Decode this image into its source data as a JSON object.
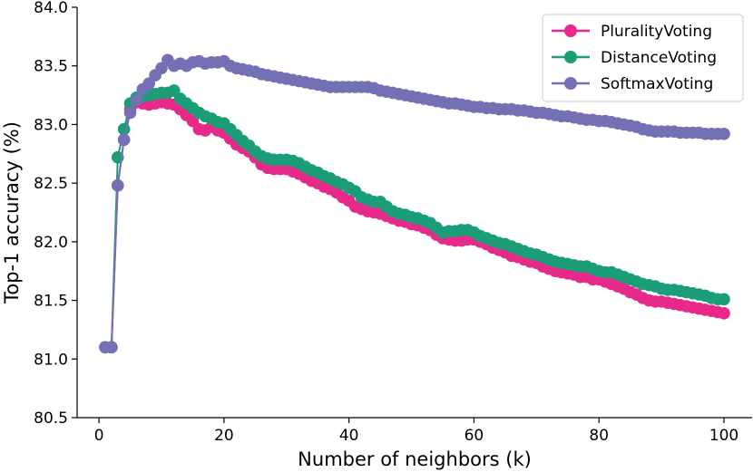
{
  "chart_data": {
    "type": "line",
    "title": "",
    "xlabel": "Number of neighbors (k)",
    "ylabel": "Top-1 accuracy (%)",
    "xlim": [
      -3.5,
      104.5
    ],
    "ylim": [
      80.5,
      84.0
    ],
    "xticks": [
      0,
      20,
      40,
      60,
      80,
      100
    ],
    "yticks": [
      80.5,
      81.0,
      81.5,
      82.0,
      82.5,
      83.0,
      83.5,
      84.0
    ],
    "xtick_labels": [
      "0",
      "20",
      "40",
      "60",
      "80",
      "100"
    ],
    "ytick_labels": [
      "80.5",
      "81.0",
      "81.5",
      "82.0",
      "82.5",
      "83.0",
      "83.5",
      "84.0"
    ],
    "legend_position": "top-right",
    "x": [
      1,
      2,
      3,
      4,
      5,
      6,
      7,
      8,
      9,
      10,
      11,
      12,
      13,
      14,
      15,
      16,
      17,
      18,
      19,
      20,
      21,
      22,
      23,
      24,
      25,
      26,
      27,
      28,
      29,
      30,
      31,
      32,
      33,
      34,
      35,
      36,
      37,
      38,
      39,
      40,
      41,
      42,
      43,
      44,
      45,
      46,
      47,
      48,
      49,
      50,
      51,
      52,
      53,
      54,
      55,
      56,
      57,
      58,
      59,
      60,
      61,
      62,
      63,
      64,
      65,
      66,
      67,
      68,
      69,
      70,
      71,
      72,
      73,
      74,
      75,
      76,
      77,
      78,
      79,
      80,
      81,
      82,
      83,
      84,
      85,
      86,
      87,
      88,
      89,
      90,
      91,
      92,
      93,
      94,
      95,
      96,
      97,
      98,
      99,
      100
    ],
    "series": [
      {
        "name": "PluralityVoting",
        "color": "#e7298a",
        "values": [
          81.1,
          81.1,
          82.48,
          82.87,
          83.13,
          83.19,
          83.18,
          83.17,
          83.18,
          83.19,
          83.18,
          83.17,
          83.13,
          83.08,
          83.03,
          82.96,
          82.95,
          82.98,
          82.95,
          82.93,
          82.88,
          82.83,
          82.8,
          82.77,
          82.72,
          82.66,
          82.63,
          82.62,
          82.62,
          82.62,
          82.6,
          82.58,
          82.55,
          82.52,
          82.5,
          82.47,
          82.45,
          82.42,
          82.38,
          82.35,
          82.3,
          82.28,
          82.26,
          82.25,
          82.24,
          82.22,
          82.2,
          82.18,
          82.17,
          82.15,
          82.14,
          82.12,
          82.1,
          82.06,
          82.03,
          82.02,
          82.01,
          82.01,
          82.02,
          82.02,
          82.0,
          81.98,
          81.95,
          81.93,
          81.91,
          81.88,
          81.87,
          81.85,
          81.83,
          81.82,
          81.79,
          81.77,
          81.75,
          81.74,
          81.73,
          81.72,
          81.7,
          81.7,
          81.68,
          81.68,
          81.66,
          81.64,
          81.62,
          81.6,
          81.57,
          81.55,
          81.52,
          81.5,
          81.49,
          81.49,
          81.48,
          81.47,
          81.46,
          81.45,
          81.44,
          81.43,
          81.42,
          81.41,
          81.4,
          81.39
        ]
      },
      {
        "name": "DistanceVoting",
        "color": "#1b9e77",
        "values": [
          81.1,
          81.1,
          82.72,
          82.96,
          83.18,
          83.23,
          83.24,
          83.25,
          83.26,
          83.27,
          83.27,
          83.29,
          83.22,
          83.18,
          83.14,
          83.1,
          83.07,
          83.05,
          83.02,
          83.01,
          82.96,
          82.91,
          82.86,
          82.82,
          82.77,
          82.73,
          82.71,
          82.7,
          82.7,
          82.7,
          82.69,
          82.67,
          82.64,
          82.61,
          82.59,
          82.56,
          82.54,
          82.51,
          82.49,
          82.46,
          82.43,
          82.38,
          82.36,
          82.34,
          82.34,
          82.3,
          82.26,
          82.24,
          82.23,
          82.21,
          82.2,
          82.18,
          82.16,
          82.12,
          82.08,
          82.09,
          82.09,
          82.1,
          82.1,
          82.08,
          82.05,
          82.03,
          82.01,
          81.99,
          81.98,
          81.96,
          81.94,
          81.92,
          81.9,
          81.89,
          81.87,
          81.85,
          81.83,
          81.82,
          81.81,
          81.8,
          81.79,
          81.79,
          81.77,
          81.75,
          81.74,
          81.74,
          81.72,
          81.7,
          81.68,
          81.66,
          81.64,
          81.63,
          81.62,
          81.6,
          81.59,
          81.59,
          81.58,
          81.57,
          81.56,
          81.55,
          81.54,
          81.52,
          81.51,
          81.51
        ]
      },
      {
        "name": "SoftmaxVoting",
        "color": "#7570b3",
        "values": [
          81.1,
          81.1,
          82.48,
          82.87,
          83.1,
          83.21,
          83.3,
          83.35,
          83.42,
          83.48,
          83.55,
          83.5,
          83.52,
          83.5,
          83.53,
          83.54,
          83.52,
          83.53,
          83.53,
          83.54,
          83.5,
          83.48,
          83.47,
          83.46,
          83.45,
          83.43,
          83.42,
          83.41,
          83.4,
          83.39,
          83.38,
          83.37,
          83.36,
          83.35,
          83.34,
          83.33,
          83.32,
          83.32,
          83.32,
          83.32,
          83.32,
          83.32,
          83.32,
          83.31,
          83.29,
          83.28,
          83.27,
          83.26,
          83.25,
          83.24,
          83.23,
          83.22,
          83.21,
          83.2,
          83.19,
          83.18,
          83.18,
          83.17,
          83.16,
          83.15,
          83.15,
          83.14,
          83.14,
          83.13,
          83.13,
          83.13,
          83.12,
          83.12,
          83.11,
          83.1,
          83.1,
          83.09,
          83.08,
          83.07,
          83.07,
          83.06,
          83.05,
          83.04,
          83.04,
          83.03,
          83.03,
          83.02,
          83.01,
          83.0,
          82.99,
          82.98,
          82.96,
          82.95,
          82.94,
          82.94,
          82.94,
          82.94,
          82.93,
          82.93,
          82.93,
          82.93,
          82.92,
          82.92,
          82.92,
          82.92
        ]
      }
    ]
  }
}
